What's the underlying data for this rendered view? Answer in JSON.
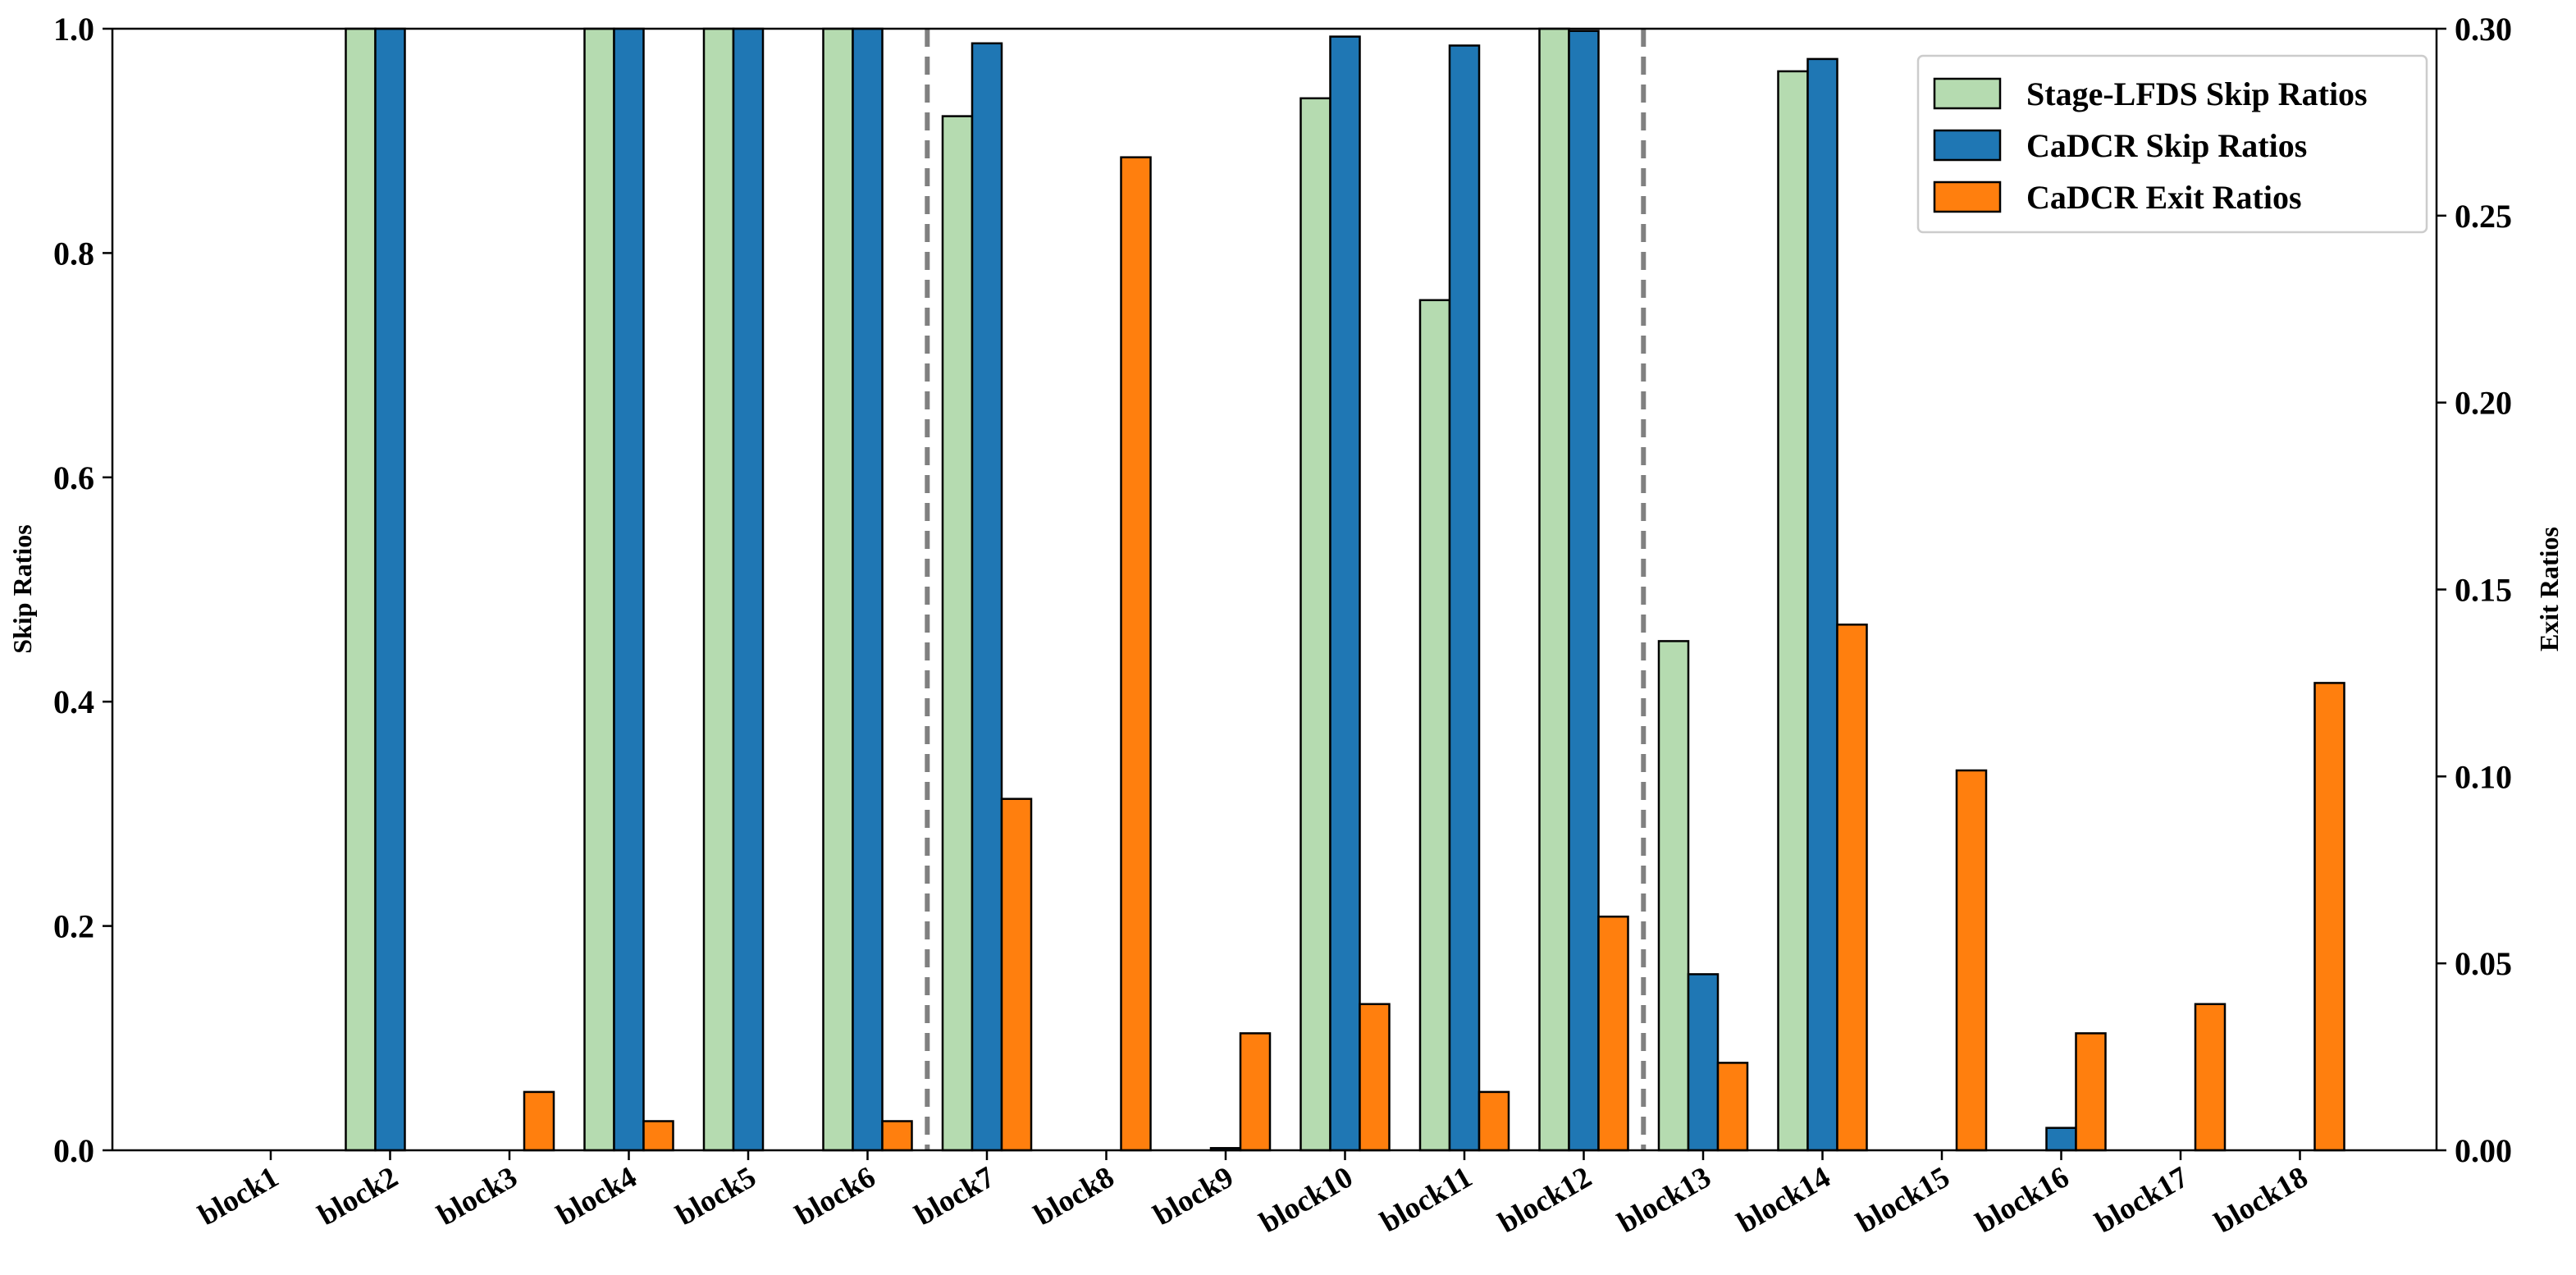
{
  "chart_data": {
    "type": "bar",
    "title": "",
    "xlabel": "",
    "ylabel": "Skip Ratios",
    "y2label": "Exit Ratios",
    "ylim": [
      0,
      1.0
    ],
    "y2lim": [
      0,
      0.3
    ],
    "yticks": [
      "0.0",
      "0.2",
      "0.4",
      "0.6",
      "0.8",
      "1.0"
    ],
    "y2ticks": [
      "0.00",
      "0.05",
      "0.10",
      "0.15",
      "0.20",
      "0.25",
      "0.30"
    ],
    "categories": [
      "block1",
      "block2",
      "block3",
      "block4",
      "block5",
      "block6",
      "block7",
      "block8",
      "block9",
      "block10",
      "block11",
      "block12",
      "block13",
      "block14",
      "block15",
      "block16",
      "block17",
      "block18"
    ],
    "stage_boundaries_after": [
      "block6",
      "block12"
    ],
    "legend_position": "top-right",
    "grid": false,
    "series": [
      {
        "name": "Stage-LFDS Skip Ratios",
        "axis": "left",
        "color": "#b5dbb0",
        "values": [
          0,
          1.0,
          0,
          1.0,
          1.0,
          1.0,
          0.922,
          0,
          0,
          0.938,
          0.758,
          1.0,
          0.454,
          0.962,
          0,
          0,
          0,
          0
        ]
      },
      {
        "name": "CaDCR Skip Ratios",
        "axis": "left",
        "color": "#1f77b4",
        "values": [
          0,
          1.0,
          0,
          1.0,
          1.0,
          1.0,
          0.987,
          0,
          0.002,
          0.993,
          0.985,
          0.998,
          0.157,
          0.973,
          0,
          0.02,
          0,
          0
        ]
      },
      {
        "name": "CaDCR Exit Ratios",
        "axis": "right",
        "color": "#ff7f0e",
        "values": [
          0,
          0,
          0.0156,
          0.0078,
          0,
          0.0078,
          0.094,
          0.2656,
          0.0313,
          0.0391,
          0.0156,
          0.0625,
          0.0234,
          0.1406,
          0.1016,
          0.0313,
          0.0391,
          0.125
        ]
      }
    ]
  }
}
